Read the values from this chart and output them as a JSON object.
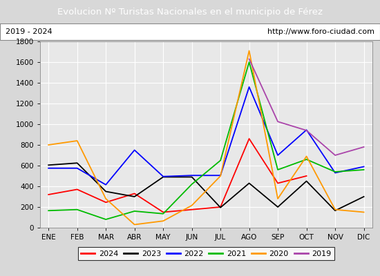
{
  "title": "Evolucion Nº Turistas Nacionales en el municipio de Férez",
  "subtitle_left": "2019 - 2024",
  "subtitle_right": "http://www.foro-ciudad.com",
  "title_bg_color": "#4f81c7",
  "title_text_color": "#ffffff",
  "months": [
    "ENE",
    "FEB",
    "MAR",
    "ABR",
    "MAY",
    "JUN",
    "JUL",
    "AGO",
    "SEP",
    "OCT",
    "NOV",
    "DIC"
  ],
  "ylim": [
    0,
    1800
  ],
  "yticks": [
    0,
    200,
    400,
    600,
    800,
    1000,
    1200,
    1400,
    1600,
    1800
  ],
  "series": {
    "2024": {
      "color": "#ff0000",
      "data": [
        320,
        370,
        245,
        330,
        150,
        175,
        200,
        860,
        430,
        500,
        null,
        null
      ]
    },
    "2023": {
      "color": "#000000",
      "data": [
        605,
        625,
        350,
        300,
        490,
        490,
        195,
        430,
        200,
        450,
        165,
        300
      ]
    },
    "2022": {
      "color": "#0000ff",
      "data": [
        575,
        575,
        415,
        750,
        495,
        505,
        505,
        1360,
        700,
        945,
        530,
        590
      ]
    },
    "2021": {
      "color": "#00bb00",
      "data": [
        165,
        175,
        80,
        160,
        135,
        420,
        650,
        1600,
        560,
        660,
        540,
        560
      ]
    },
    "2020": {
      "color": "#ff9900",
      "data": [
        800,
        840,
        280,
        30,
        65,
        215,
        500,
        1710,
        280,
        690,
        175,
        150
      ]
    },
    "2019": {
      "color": "#aa44aa",
      "data": [
        null,
        null,
        null,
        null,
        null,
        null,
        null,
        1630,
        1025,
        940,
        700,
        780
      ]
    }
  },
  "legend_order": [
    "2024",
    "2023",
    "2022",
    "2021",
    "2020",
    "2019"
  ],
  "plot_bg_color": "#e8e8e8",
  "outer_bg_color": "#d8d8d8",
  "grid_color": "#ffffff",
  "border_color": "#888888"
}
